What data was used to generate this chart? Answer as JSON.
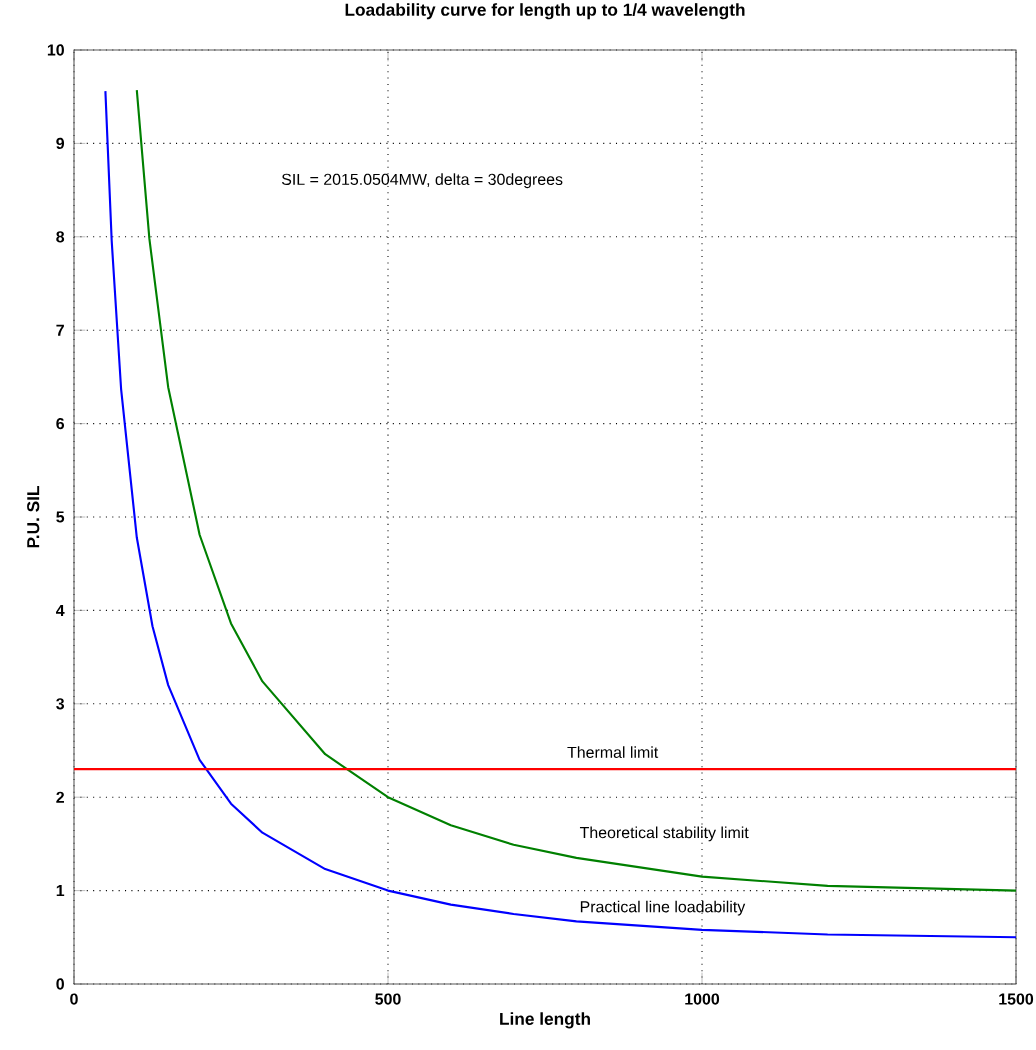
{
  "chart_data": {
    "type": "line",
    "title": "Loadability curve for length up to 1/4 wavelength",
    "xlabel": "Line length",
    "ylabel": "P.U. SIL",
    "annotations": [
      "SIL = 2015.0504MW, delta = 30degrees"
    ],
    "series": [
      {
        "name": "Practical line loadability",
        "color": "#0000ff",
        "x": [
          50,
          60,
          75,
          100,
          125,
          150,
          200,
          250,
          300,
          400,
          500,
          600,
          700,
          800,
          1000,
          1200,
          1500
        ],
        "values": [
          9.56,
          7.96,
          6.37,
          4.78,
          3.83,
          3.2,
          2.4,
          1.93,
          1.62,
          1.23,
          1.0,
          0.85,
          0.75,
          0.67,
          0.58,
          0.53,
          0.5
        ]
      },
      {
        "name": "Theoretical stability limit",
        "color": "#008000",
        "x": [
          100,
          120,
          150,
          200,
          250,
          300,
          400,
          500,
          600,
          700,
          800,
          1000,
          1200,
          1500
        ],
        "values": [
          9.57,
          7.98,
          6.39,
          4.81,
          3.86,
          3.24,
          2.46,
          2.0,
          1.7,
          1.49,
          1.35,
          1.15,
          1.05,
          1.0
        ]
      }
    ],
    "ref_lines": [
      {
        "axis": "y",
        "value": 2.3,
        "label": "Thermal limit",
        "color": "#ff0000"
      }
    ],
    "xlim": [
      0,
      1500
    ],
    "ylim": [
      0,
      10
    ],
    "xticks": [
      0,
      500,
      1000,
      1500
    ],
    "yticks": [
      0,
      1,
      2,
      3,
      4,
      5,
      6,
      7,
      8,
      9,
      10
    ],
    "grid": true,
    "line_style": "solid",
    "marker": "none"
  }
}
